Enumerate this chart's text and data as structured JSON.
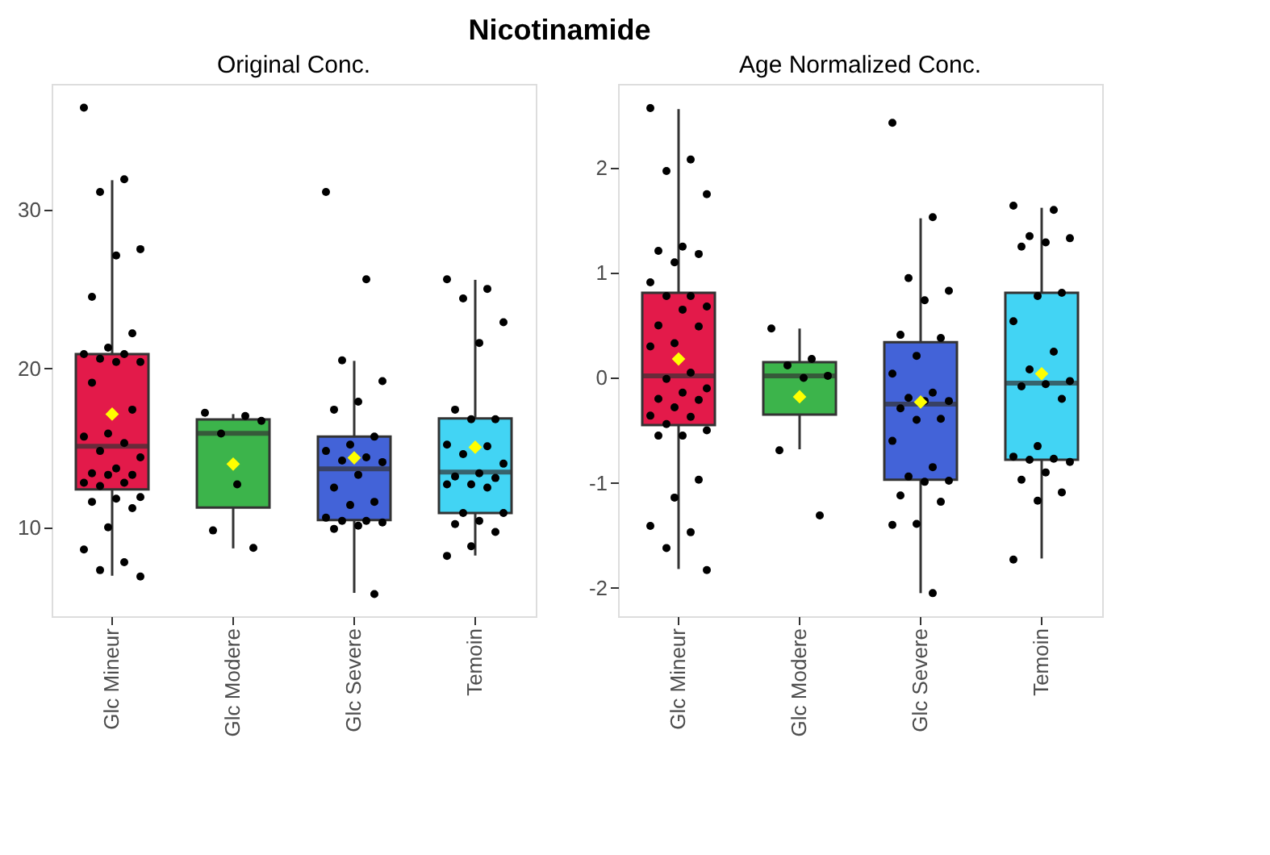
{
  "chart_data": [
    {
      "type": "box",
      "title": "Original Conc.",
      "annotations": [
        "Nicotinamide"
      ],
      "categories": [
        "Glc Mineur",
        "Glc Modere",
        "Glc Severe",
        "Temoin"
      ],
      "colors": [
        "#e31a4a",
        "#3cb44b",
        "#4363d8",
        "#42d4f4"
      ],
      "boxes": [
        {
          "low": 6.95,
          "q1": 12.38,
          "median": 15.1,
          "q3": 20.89,
          "high": 31.84,
          "mean": 17.12
        },
        {
          "low": 8.67,
          "q1": 11.24,
          "median": 15.91,
          "q3": 16.79,
          "high": 17.12,
          "mean": 13.98
        },
        {
          "low": 5.87,
          "q1": 10.45,
          "median": 13.68,
          "q3": 15.7,
          "high": 20.47,
          "mean": 14.37
        },
        {
          "low": 8.22,
          "q1": 10.9,
          "median": 13.47,
          "q3": 16.85,
          "high": 25.57,
          "mean": 15.04
        }
      ],
      "series": [
        {
          "type": "scatter",
          "color": "#000000",
          "marker": "circle",
          "x": [
            "Glc Mineur",
            "Glc Mineur",
            "Glc Mineur",
            "Glc Mineur",
            "Glc Mineur",
            "Glc Mineur",
            "Glc Mineur",
            "Glc Mineur",
            "Glc Mineur",
            "Glc Mineur",
            "Glc Mineur",
            "Glc Mineur",
            "Glc Mineur",
            "Glc Mineur",
            "Glc Mineur",
            "Glc Mineur",
            "Glc Mineur",
            "Glc Mineur",
            "Glc Mineur",
            "Glc Mineur",
            "Glc Mineur",
            "Glc Mineur",
            "Glc Mineur",
            "Glc Mineur",
            "Glc Mineur",
            "Glc Mineur",
            "Glc Mineur",
            "Glc Mineur",
            "Glc Mineur",
            "Glc Mineur",
            "Glc Mineur",
            "Glc Mineur",
            "Glc Mineur",
            "Glc Mineur",
            "Glc Mineur",
            "Glc Mineur",
            "Glc Modere",
            "Glc Modere",
            "Glc Modere",
            "Glc Modere",
            "Glc Modere",
            "Glc Modere",
            "Glc Modere",
            "Glc Severe",
            "Glc Severe",
            "Glc Severe",
            "Glc Severe",
            "Glc Severe",
            "Glc Severe",
            "Glc Severe",
            "Glc Severe",
            "Glc Severe",
            "Glc Severe",
            "Glc Severe",
            "Glc Severe",
            "Glc Severe",
            "Glc Severe",
            "Glc Severe",
            "Glc Severe",
            "Glc Severe",
            "Glc Severe",
            "Glc Severe",
            "Glc Severe",
            "Glc Severe",
            "Glc Severe",
            "Glc Severe",
            "Temoin",
            "Temoin",
            "Temoin",
            "Temoin",
            "Temoin",
            "Temoin",
            "Temoin",
            "Temoin",
            "Temoin",
            "Temoin",
            "Temoin",
            "Temoin",
            "Temoin",
            "Temoin",
            "Temoin",
            "Temoin",
            "Temoin",
            "Temoin",
            "Temoin",
            "Temoin",
            "Temoin",
            "Temoin",
            "Temoin",
            "Temoin",
            "Temoin"
          ],
          "values": [
            36.4,
            31.9,
            31.1,
            27.5,
            27.1,
            24.5,
            22.2,
            21.3,
            20.9,
            20.9,
            20.6,
            20.4,
            20.4,
            19.1,
            17.4,
            15.9,
            15.7,
            15.3,
            14.8,
            14.4,
            13.7,
            13.4,
            13.3,
            13.3,
            12.8,
            12.8,
            12.6,
            11.9,
            11.8,
            11.6,
            11.2,
            10.0,
            8.6,
            7.8,
            7.3,
            6.9,
            17.2,
            17.0,
            15.9,
            16.7,
            12.7,
            9.8,
            8.7,
            31.1,
            25.6,
            20.5,
            19.2,
            17.9,
            17.4,
            15.7,
            15.2,
            14.8,
            14.4,
            14.2,
            14.1,
            13.3,
            12.5,
            11.6,
            11.4,
            10.6,
            10.4,
            10.4,
            10.3,
            10.1,
            9.9,
            5.8,
            25.6,
            25.0,
            24.4,
            22.9,
            21.6,
            17.4,
            16.8,
            16.8,
            15.2,
            15.1,
            14.6,
            14.0,
            13.4,
            13.2,
            13.1,
            12.7,
            12.7,
            12.5,
            10.9,
            10.9,
            10.4,
            10.2,
            9.7,
            8.8,
            8.2
          ]
        }
      ],
      "ylim": [
        4.4,
        37.9
      ],
      "yticks": [
        10,
        20,
        30
      ],
      "grid": false
    },
    {
      "type": "box",
      "title": "Age Normalized Conc.",
      "categories": [
        "Glc Mineur",
        "Glc Modere",
        "Glc Severe",
        "Temoin"
      ],
      "colors": [
        "#e31a4a",
        "#3cb44b",
        "#4363d8",
        "#42d4f4"
      ],
      "boxes": [
        {
          "low": -1.82,
          "q1": -0.45,
          "median": 0.02,
          "q3": 0.81,
          "high": 2.56,
          "mean": 0.18
        },
        {
          "low": -0.68,
          "q1": -0.35,
          "median": 0.02,
          "q3": 0.15,
          "high": 0.47,
          "mean": -0.18
        },
        {
          "low": -2.05,
          "q1": -0.97,
          "median": -0.25,
          "q3": 0.34,
          "high": 1.52,
          "mean": -0.23
        },
        {
          "low": -1.72,
          "q1": -0.78,
          "median": -0.05,
          "q3": 0.81,
          "high": 1.62,
          "mean": 0.04
        }
      ],
      "series": [
        {
          "type": "scatter",
          "color": "#000000",
          "marker": "circle",
          "x": [
            "Glc Mineur",
            "Glc Mineur",
            "Glc Mineur",
            "Glc Mineur",
            "Glc Mineur",
            "Glc Mineur",
            "Glc Mineur",
            "Glc Mineur",
            "Glc Mineur",
            "Glc Mineur",
            "Glc Mineur",
            "Glc Mineur",
            "Glc Mineur",
            "Glc Mineur",
            "Glc Mineur",
            "Glc Mineur",
            "Glc Mineur",
            "Glc Mineur",
            "Glc Mineur",
            "Glc Mineur",
            "Glc Mineur",
            "Glc Mineur",
            "Glc Mineur",
            "Glc Mineur",
            "Glc Mineur",
            "Glc Mineur",
            "Glc Mineur",
            "Glc Mineur",
            "Glc Mineur",
            "Glc Mineur",
            "Glc Mineur",
            "Glc Mineur",
            "Glc Mineur",
            "Glc Mineur",
            "Glc Mineur",
            "Glc Mineur",
            "Glc Modere",
            "Glc Modere",
            "Glc Modere",
            "Glc Modere",
            "Glc Modere",
            "Glc Modere",
            "Glc Modere",
            "Glc Severe",
            "Glc Severe",
            "Glc Severe",
            "Glc Severe",
            "Glc Severe",
            "Glc Severe",
            "Glc Severe",
            "Glc Severe",
            "Glc Severe",
            "Glc Severe",
            "Glc Severe",
            "Glc Severe",
            "Glc Severe",
            "Glc Severe",
            "Glc Severe",
            "Glc Severe",
            "Glc Severe",
            "Glc Severe",
            "Glc Severe",
            "Glc Severe",
            "Glc Severe",
            "Glc Severe",
            "Glc Severe",
            "Glc Severe",
            "Glc Severe",
            "Glc Severe",
            "Temoin",
            "Temoin",
            "Temoin",
            "Temoin",
            "Temoin",
            "Temoin",
            "Temoin",
            "Temoin",
            "Temoin",
            "Temoin",
            "Temoin",
            "Temoin",
            "Temoin",
            "Temoin",
            "Temoin",
            "Temoin",
            "Temoin",
            "Temoin",
            "Temoin",
            "Temoin",
            "Temoin",
            "Temoin",
            "Temoin",
            "Temoin",
            "Temoin"
          ],
          "values": [
            2.57,
            2.08,
            1.97,
            1.75,
            1.25,
            1.21,
            1.18,
            1.1,
            0.91,
            0.78,
            0.78,
            0.68,
            0.65,
            0.5,
            0.49,
            0.33,
            0.3,
            0.05,
            -0.01,
            -0.1,
            -0.14,
            -0.2,
            -0.21,
            -0.28,
            -0.36,
            -0.37,
            -0.44,
            -0.5,
            -0.55,
            -0.55,
            -0.97,
            -1.14,
            -1.41,
            -1.47,
            -1.62,
            -1.83,
            0.47,
            0.18,
            0.12,
            0.02,
            0.0,
            -0.69,
            -1.31,
            2.43,
            1.53,
            0.95,
            0.83,
            0.74,
            0.41,
            0.38,
            0.21,
            0.04,
            -0.14,
            -0.19,
            -0.22,
            -0.22,
            -0.29,
            -0.39,
            -0.4,
            -0.6,
            -0.85,
            -0.94,
            -0.98,
            -0.99,
            -1.12,
            -1.18,
            -1.39,
            -1.4,
            -2.05,
            1.64,
            1.6,
            1.35,
            1.33,
            1.29,
            1.25,
            0.81,
            0.78,
            0.54,
            0.25,
            0.08,
            -0.03,
            -0.06,
            -0.08,
            -0.2,
            -0.65,
            -0.75,
            -0.77,
            -0.78,
            -0.8,
            -0.9,
            -0.97,
            -1.09,
            -1.17,
            -1.73
          ]
        }
      ],
      "ylim": [
        -2.27,
        2.8
      ],
      "yticks": [
        -2,
        -1,
        0,
        1,
        2
      ],
      "grid": false
    }
  ]
}
